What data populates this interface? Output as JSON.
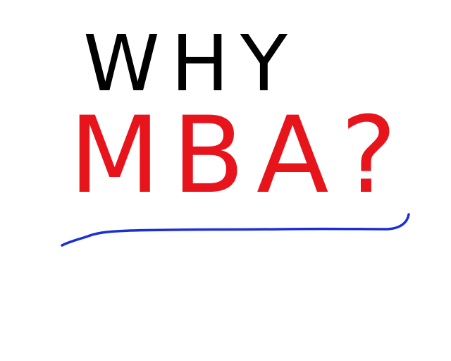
{
  "lines": [
    {
      "text": "WHY",
      "color": "#000000"
    },
    {
      "text": "MBA?",
      "color": "#e8141c"
    }
  ]
}
